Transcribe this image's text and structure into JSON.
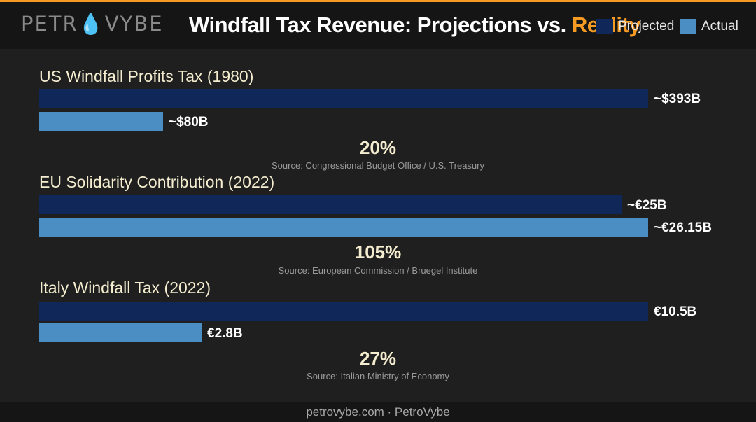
{
  "brand": {
    "logo_text": "PETROVYBE"
  },
  "header": {
    "title_main": "Windfall Tax Revenue: Projections vs. ",
    "title_accent": "Reality"
  },
  "colors": {
    "projected": "#10275a",
    "actual": "#4a8ec4",
    "accent": "#f59a23",
    "background": "#1f1f1f"
  },
  "chart_data": {
    "type": "bar",
    "orientation": "horizontal",
    "legend_position": "top-right",
    "series_names": [
      "Projected",
      "Actual"
    ],
    "groups": [
      {
        "title": "US Windfall Profits Tax (1980)",
        "projected": 393,
        "actual": 80,
        "projected_label": "~$393B",
        "actual_label": "~$80B",
        "ratio": "20%",
        "source": "Source: Congressional Budget Office / U.S. Treasury"
      },
      {
        "title": "EU Solidarity Contribution (2022)",
        "projected": 25,
        "actual": 26.15,
        "projected_label": "~€25B",
        "actual_label": "~€26.15B",
        "ratio": "105%",
        "source": "Source: European Commission / Bruegel Institute"
      },
      {
        "title": "Italy Windfall Tax (2022)",
        "projected": 10.5,
        "actual": 2.8,
        "projected_label": "€10.5B",
        "actual_label": "€2.8B",
        "ratio": "27%",
        "source": "Source: Italian Ministry of Economy"
      }
    ]
  },
  "footer": {
    "text": "petrovybe.com · PetroVybe"
  }
}
